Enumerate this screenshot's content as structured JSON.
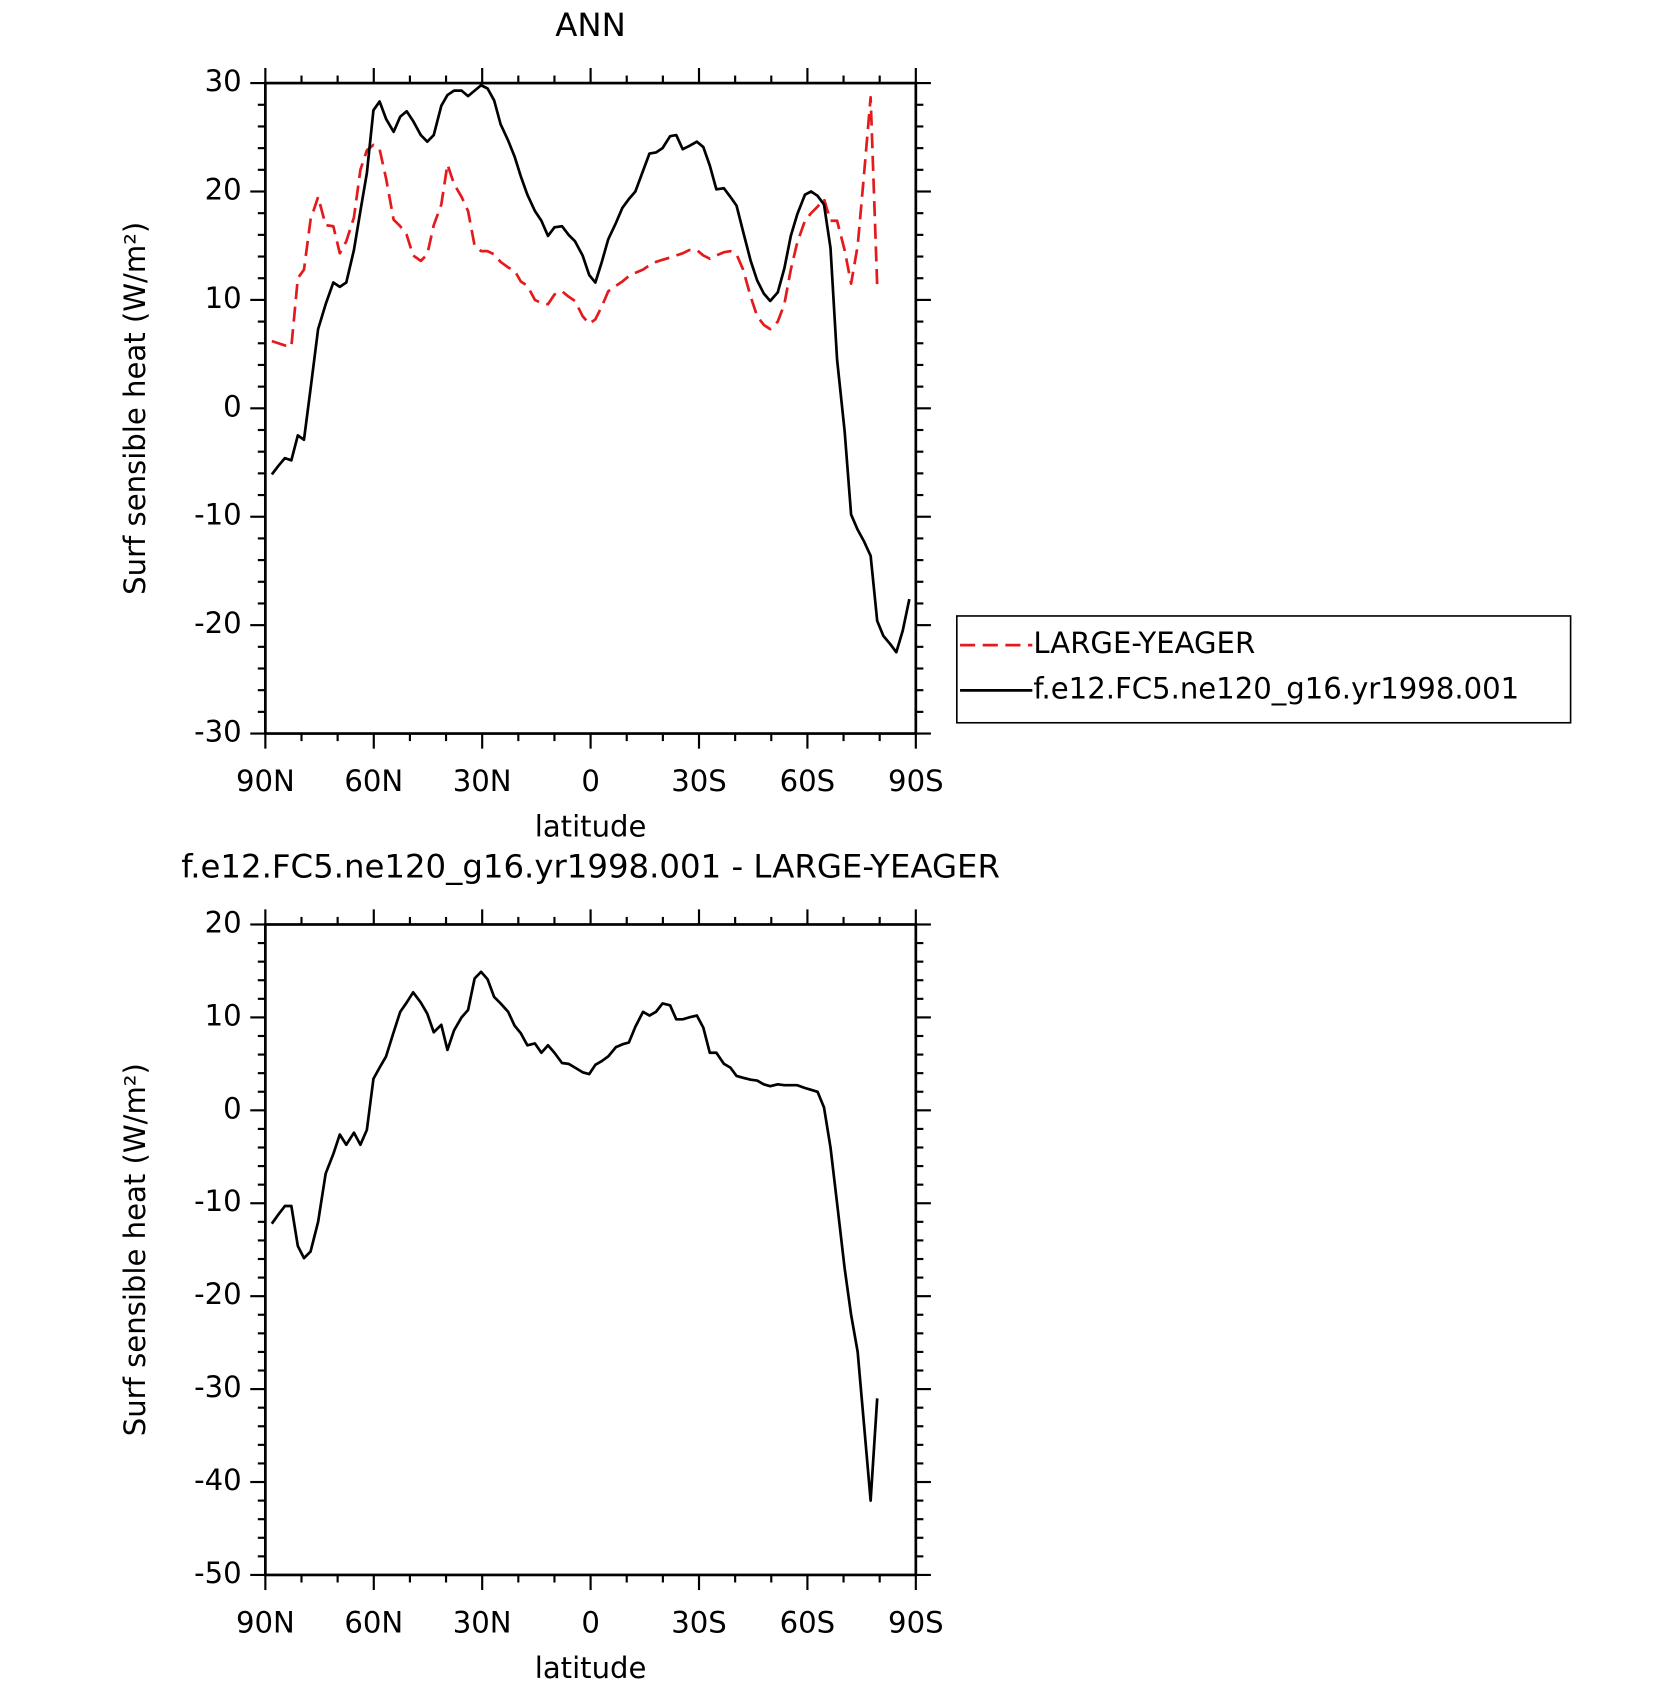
{
  "chart_data": [
    {
      "type": "line",
      "title": "ANN",
      "xlabel": "latitude",
      "ylabel": "Surf sensible heat (W/m²)",
      "x": [
        88.2,
        86.4,
        84.6,
        82.8,
        81.0,
        79.3,
        77.5,
        75.4,
        73.3,
        71.2,
        69.4,
        67.6,
        65.5,
        63.7,
        61.9,
        60.1,
        58.4,
        56.6,
        54.5,
        52.7,
        50.9,
        49.1,
        47.0,
        45.2,
        43.4,
        41.3,
        39.6,
        37.8,
        35.7,
        33.9,
        32.1,
        30.3,
        28.5,
        26.7,
        24.9,
        22.8,
        21.0,
        19.3,
        17.5,
        15.4,
        13.6,
        11.8,
        10.0,
        7.9,
        6.1,
        4.3,
        2.2,
        0.4,
        -1.3,
        -3.1,
        -4.9,
        -7.0,
        -8.8,
        -10.6,
        -12.4,
        -14.5,
        -16.3,
        -18.1,
        -19.9,
        -22.0,
        -23.7,
        -25.5,
        -27.3,
        -29.4,
        -31.2,
        -33.0,
        -34.8,
        -36.9,
        -38.7,
        -40.4,
        -42.2,
        -44.3,
        -46.1,
        -47.9,
        -49.7,
        -51.8,
        -53.6,
        -55.4,
        -57.2,
        -59.3,
        -61.0,
        -62.8,
        -64.6,
        -66.4,
        -68.2,
        -70.3,
        -72.1,
        -73.9,
        -75.7,
        -77.5,
        -79.3,
        -81.0,
        -82.8,
        -84.6,
        -86.4,
        -88.2
      ],
      "series": [
        {
          "name": "LARGE-YEAGER",
          "color": "#e41a1c",
          "dash": true,
          "values": [
            6.2,
            6.0,
            5.8,
            5.7,
            12.0,
            12.8,
            17.4,
            19.5,
            16.9,
            16.8,
            14.3,
            15.4,
            17.6,
            22.0,
            23.8,
            24.3,
            23.9,
            21.2,
            17.4,
            16.8,
            16.0,
            14.1,
            13.6,
            14.2,
            16.9,
            18.8,
            22.5,
            20.7,
            19.5,
            18.2,
            15.0,
            14.5,
            14.5,
            14.2,
            13.5,
            13.0,
            12.7,
            11.7,
            11.3,
            10.0,
            9.7,
            9.6,
            10.5,
            10.8,
            10.3,
            9.9,
            8.5,
            7.8,
            8.2,
            9.4,
            10.8,
            11.3,
            11.7,
            12.2,
            12.5,
            12.8,
            13.2,
            13.5,
            13.7,
            13.9,
            14.1,
            14.3,
            14.6,
            14.6,
            14.1,
            13.8,
            14.1,
            14.4,
            14.5,
            14.2,
            12.8,
            10.3,
            8.5,
            7.7,
            7.3,
            8.0,
            9.6,
            12.8,
            15.3,
            17.3,
            18.0,
            18.6,
            19.3,
            17.3,
            17.3,
            14.6,
            11.5,
            15.0,
            21.7,
            28.7,
            11.3,
            null,
            null,
            null,
            null,
            null
          ]
        },
        {
          "name": "f.e12.FC5.ne120_g16.yr1998.001",
          "color": "#000000",
          "dash": false,
          "values": [
            -6.1,
            -5.3,
            -4.6,
            -4.8,
            -2.5,
            -2.9,
            1.8,
            7.3,
            9.6,
            11.6,
            11.2,
            11.6,
            14.6,
            18.2,
            21.7,
            27.5,
            28.3,
            26.7,
            25.5,
            26.9,
            27.4,
            26.5,
            25.2,
            24.6,
            25.2,
            27.9,
            28.9,
            29.3,
            29.3,
            28.8,
            29.3,
            29.8,
            29.5,
            28.4,
            26.2,
            24.7,
            23.2,
            21.4,
            19.7,
            18.2,
            17.3,
            15.9,
            16.7,
            16.8,
            16.0,
            15.4,
            14.1,
            12.3,
            11.6,
            13.5,
            15.6,
            17.1,
            18.5,
            19.3,
            20.0,
            21.9,
            23.5,
            23.6,
            24.0,
            25.1,
            25.2,
            23.9,
            24.2,
            24.6,
            24.1,
            22.4,
            20.2,
            20.3,
            19.5,
            18.7,
            16.3,
            13.6,
            11.8,
            10.6,
            9.9,
            10.7,
            12.9,
            15.9,
            17.9,
            19.7,
            20.0,
            19.6,
            18.8,
            14.8,
            4.5,
            -2.1,
            -9.8,
            -11.2,
            -12.3,
            -13.6,
            -19.6,
            -21.0,
            -21.7,
            -22.5,
            -20.5,
            -17.6
          ]
        }
      ],
      "xlim": [
        90,
        -90
      ],
      "xticks": [
        {
          "value": 90,
          "label": "90N"
        },
        {
          "value": 60,
          "label": "60N"
        },
        {
          "value": 30,
          "label": "30N"
        },
        0,
        {
          "value": -30,
          "label": "30S"
        },
        {
          "value": -60,
          "label": "60S"
        },
        {
          "value": -90,
          "label": "90S"
        }
      ],
      "ylim": [
        -30,
        30
      ],
      "yticks": [
        30,
        20,
        10,
        0,
        -10,
        -20,
        -30
      ],
      "legend": "right"
    },
    {
      "type": "line",
      "title": "f.e12.FC5.ne120_g16.yr1998.001 - LARGE-YEAGER",
      "xlabel": "latitude",
      "ylabel": "Surf sensible heat (W/m²)",
      "x": [
        88.2,
        86.4,
        84.6,
        82.8,
        81.0,
        79.3,
        77.5,
        75.4,
        73.3,
        71.2,
        69.4,
        67.6,
        65.5,
        63.7,
        61.9,
        60.1,
        58.4,
        56.6,
        54.5,
        52.7,
        50.9,
        49.1,
        47.0,
        45.2,
        43.4,
        41.3,
        39.6,
        37.8,
        35.7,
        33.9,
        32.1,
        30.3,
        28.5,
        26.7,
        24.9,
        22.8,
        21.0,
        19.3,
        17.5,
        15.4,
        13.6,
        11.8,
        10.0,
        7.9,
        6.1,
        4.3,
        2.2,
        0.4,
        -1.3,
        -3.1,
        -4.9,
        -7.0,
        -8.8,
        -10.6,
        -12.4,
        -14.5,
        -16.3,
        -18.1,
        -19.9,
        -22.0,
        -23.7,
        -25.5,
        -27.3,
        -29.4,
        -31.2,
        -33.0,
        -34.8,
        -36.9,
        -38.7,
        -40.4,
        -42.2,
        -44.3,
        -46.1,
        -47.9,
        -49.7,
        -51.8,
        -53.6,
        -55.4,
        -57.2,
        -59.3,
        -61.0,
        -62.8,
        -64.6,
        -66.4,
        -68.2,
        -70.3,
        -72.1,
        -73.9,
        -75.7,
        -77.5,
        -79.3
      ],
      "series": [
        {
          "color": "#000000",
          "dash": false,
          "values": [
            -12.2,
            -11.2,
            -10.3,
            -10.3,
            -14.6,
            -15.9,
            -15.2,
            -12.0,
            -6.8,
            -4.7,
            -2.6,
            -3.7,
            -2.4,
            -3.7,
            -2.1,
            3.4,
            4.6,
            5.8,
            8.4,
            10.6,
            11.6,
            12.7,
            11.6,
            10.4,
            8.4,
            9.2,
            6.5,
            8.6,
            10.0,
            10.8,
            14.2,
            14.9,
            14.1,
            12.2,
            11.5,
            10.6,
            9.1,
            8.3,
            7.0,
            7.2,
            6.2,
            7.0,
            6.2,
            5.1,
            5.0,
            4.6,
            4.1,
            3.9,
            4.9,
            5.3,
            5.8,
            6.8,
            7.1,
            7.3,
            9.0,
            10.6,
            10.2,
            10.6,
            11.5,
            11.3,
            9.8,
            9.8,
            10.0,
            10.2,
            8.9,
            6.2,
            6.2,
            5.0,
            4.6,
            3.7,
            3.5,
            3.3,
            3.2,
            2.8,
            2.6,
            2.8,
            2.7,
            2.7,
            2.7,
            2.4,
            2.2,
            2.0,
            0.3,
            -4.0,
            -10.0,
            -17.0,
            -22.0,
            -26.0,
            -34.0,
            -42.0,
            -31.0
          ]
        }
      ],
      "xlim": [
        90,
        -90
      ],
      "xticks": [
        {
          "value": 90,
          "label": "90N"
        },
        {
          "value": 60,
          "label": "60N"
        },
        {
          "value": 30,
          "label": "30N"
        },
        0,
        {
          "value": -30,
          "label": "30S"
        },
        {
          "value": -60,
          "label": "60S"
        },
        {
          "value": -90,
          "label": "90S"
        }
      ],
      "ylim": [
        -50,
        20
      ],
      "yticks": [
        20,
        10,
        0,
        -10,
        -20,
        -30,
        -40,
        -50
      ]
    }
  ]
}
